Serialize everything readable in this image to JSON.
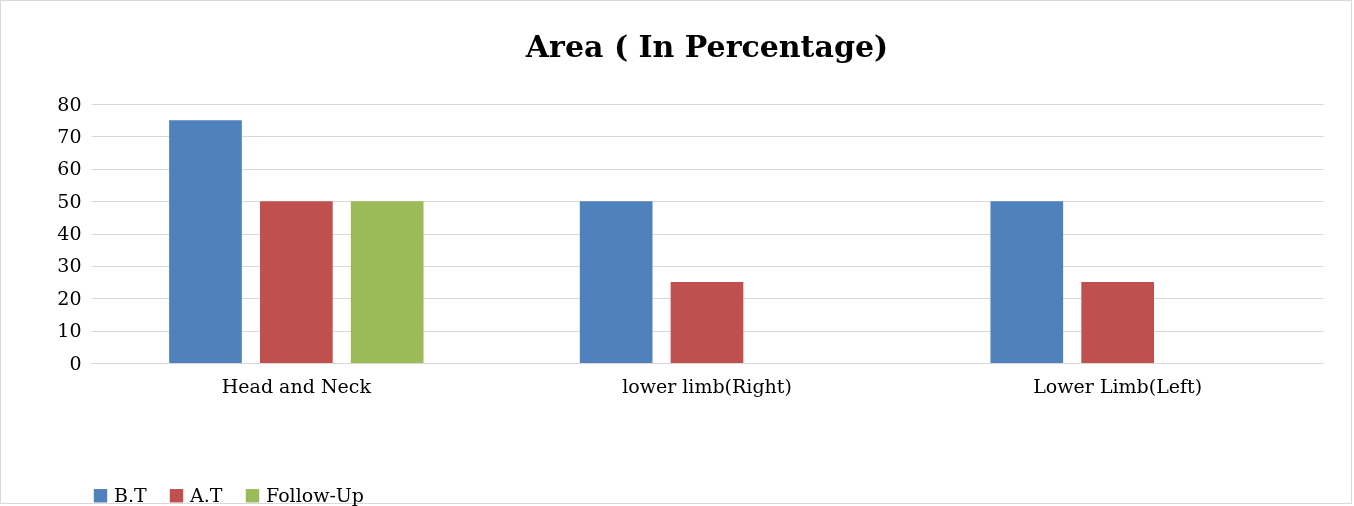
{
  "chart_data": {
    "type": "bar",
    "title": "Area ( In Percentage)",
    "categories": [
      "Head and Neck",
      "lower limb(Right)",
      "Lower Limb(Left)"
    ],
    "series": [
      {
        "name": "B.T",
        "color": "#4f81bd",
        "values": [
          75,
          50,
          50
        ]
      },
      {
        "name": "A.T",
        "color": "#c0504d",
        "values": [
          50,
          25,
          25
        ]
      },
      {
        "name": "Follow-Up",
        "color": "#9bbb59",
        "values": [
          50,
          0,
          0
        ]
      }
    ],
    "ylim": [
      0,
      80
    ],
    "yticks": [
      0,
      10,
      20,
      30,
      40,
      50,
      60,
      70,
      80
    ],
    "grid": "y",
    "legend": "bottom"
  }
}
